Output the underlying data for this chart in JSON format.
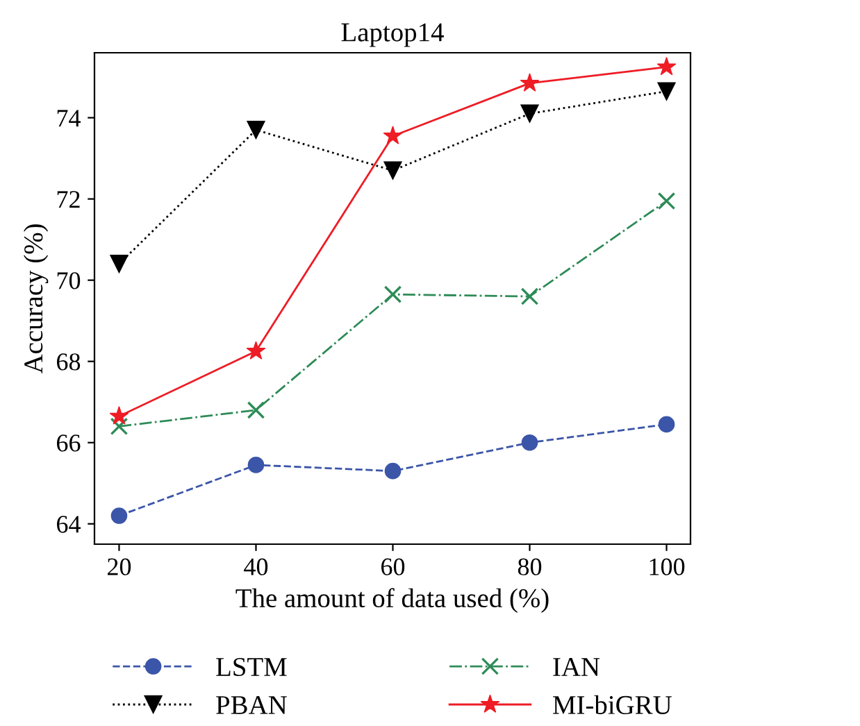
{
  "chart_data": {
    "type": "line",
    "title": "Laptop14",
    "xlabel": "The amount of data used (%)",
    "ylabel": "Accuracy (%)",
    "x": [
      20,
      40,
      60,
      80,
      100
    ],
    "series": [
      {
        "name": "LSTM",
        "color": "#3b55a8",
        "marker": "circle",
        "line_style": "dashed",
        "values": [
          64.2,
          65.45,
          65.3,
          66.0,
          66.45
        ]
      },
      {
        "name": "PBAN",
        "color": "#000000",
        "marker": "triangle",
        "line_style": "dotted",
        "values": [
          70.4,
          73.7,
          72.7,
          74.1,
          74.65
        ]
      },
      {
        "name": "IAN",
        "color": "#2e8b57",
        "marker": "cross",
        "line_style": "dashdot",
        "values": [
          66.4,
          66.8,
          69.65,
          69.6,
          71.95
        ]
      },
      {
        "name": "MI-biGRU",
        "color": "#ee1c25",
        "marker": "star",
        "line_style": "solid",
        "values": [
          66.65,
          68.25,
          73.55,
          74.85,
          75.25
        ]
      }
    ],
    "xlim": [
      16.4,
      103.5
    ],
    "ylim": [
      63.5,
      75.6
    ],
    "xticks": [
      20,
      40,
      60,
      80,
      100
    ],
    "yticks": [
      64,
      66,
      68,
      70,
      72,
      74
    ],
    "grid": false,
    "legend": "bottom"
  }
}
